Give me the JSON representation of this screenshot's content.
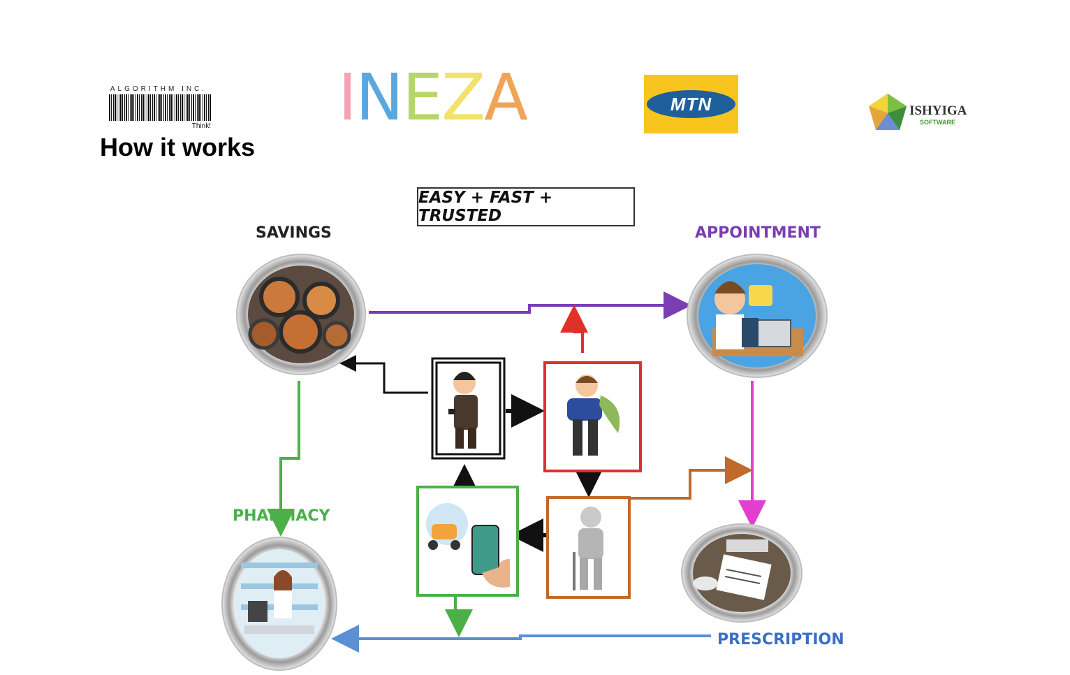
{
  "header": {
    "algorithm_logo": {
      "name": "ALGORITHM INC.",
      "tagline": "Think!"
    },
    "title": "How it works",
    "ineza_logo": {
      "letters": [
        "I",
        "N",
        "E",
        "Z",
        "A"
      ],
      "colors": [
        "#f4a3b5",
        "#5aa7de",
        "#b6d66a",
        "#f2e16a",
        "#f0a457"
      ]
    },
    "mtn_logo": {
      "text": "MTN",
      "background": "#f7c51e",
      "oval": "#1e5f9c"
    },
    "ishyiga_logo": {
      "name": "ISHYIGA",
      "subtitle": "SOFTWARE"
    }
  },
  "diagram": {
    "tagline": "EASY + FAST + TRUSTED",
    "nodes": {
      "savings": {
        "label": "SAVINGS",
        "color": "#222222",
        "icon": "coins-icon"
      },
      "appointment": {
        "label": "APPOINTMENT",
        "color": "#7a3db3",
        "icon": "doctor-computer-icon"
      },
      "pharmacy": {
        "label": "PHARMACY",
        "color": "#4bb048",
        "icon": "pharmacist-icon"
      },
      "prescription": {
        "label": "PRESCRIPTION",
        "color": "#3a6fc4",
        "icon": "prescription-paper-icon"
      }
    },
    "steps": {
      "healthy_person": {
        "icon": "person-with-phone-icon",
        "border": "#111111"
      },
      "sick_person": {
        "icon": "sick-person-icon",
        "border": "#e0302a"
      },
      "injured_person": {
        "icon": "injured-person-icon",
        "border": "#c0692a"
      },
      "delivery": {
        "icon": "scooter-phone-icon",
        "border": "#4bb048"
      }
    },
    "arrow_colors": {
      "savings_to_appointment": "#7a3db3",
      "appointment_to_prescription": "#e23fd0",
      "injured_to_prescription": "#c0692a",
      "prescription_to_pharmacy": "#5b8fd6",
      "savings_to_pharmacy": "#4bb048",
      "sick_to_appointment": "#e0302a"
    }
  }
}
